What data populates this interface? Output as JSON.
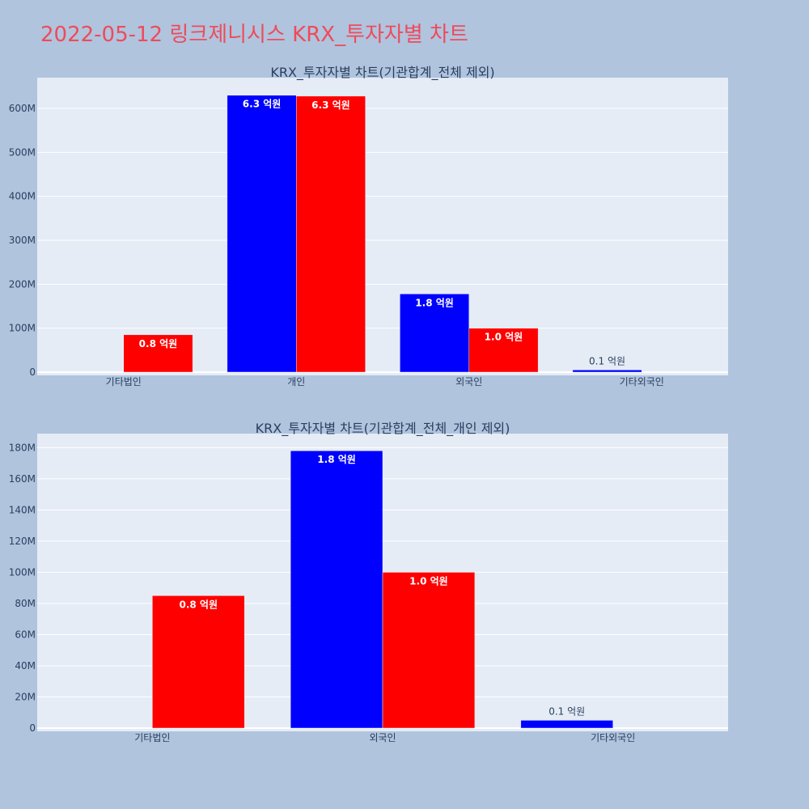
{
  "page_title": "2022-05-12 링크제니시스 KRX_투자자별 차트",
  "colors": {
    "page_bg": "#b0c4de",
    "plot_bg": "#e5ecf6",
    "grid": "#ffffff",
    "title": "#ef4b5b",
    "text": "#2a3f5f"
  },
  "chart_data": [
    {
      "type": "bar",
      "title": "KRX_투자자별 차트(기관합계_전체 제외)",
      "categories": [
        "기타법인",
        "개인",
        "외국인",
        "기타외국인"
      ],
      "ylim": [
        0,
        670000000
      ],
      "yticks": [
        0,
        100000000,
        200000000,
        300000000,
        400000000,
        500000000,
        600000000
      ],
      "ytick_labels": [
        "0",
        "100M",
        "200M",
        "300M",
        "400M",
        "500M",
        "600M"
      ],
      "grid": true,
      "series": [
        {
          "color": "#0000ff",
          "values": [
            0,
            630000000,
            178000000,
            5000000
          ],
          "labels": [
            "",
            "6.3 억원",
            "1.8 억원",
            "0.1 억원"
          ]
        },
        {
          "color": "#ff0000",
          "values": [
            85000000,
            628000000,
            100000000,
            0
          ],
          "labels": [
            "0.8 억원",
            "6.3 억원",
            "1.0 억원",
            ""
          ]
        }
      ]
    },
    {
      "type": "bar",
      "title": "KRX_투자자별 차트(기관합계_전체_개인 제외)",
      "categories": [
        "기타법인",
        "외국인",
        "기타외국인"
      ],
      "ylim": [
        0,
        189000000
      ],
      "yticks": [
        0,
        20000000,
        40000000,
        60000000,
        80000000,
        100000000,
        120000000,
        140000000,
        160000000,
        180000000
      ],
      "ytick_labels": [
        "0",
        "20M",
        "40M",
        "60M",
        "80M",
        "100M",
        "120M",
        "140M",
        "160M",
        "180M"
      ],
      "grid": true,
      "series": [
        {
          "color": "#0000ff",
          "values": [
            0,
            178000000,
            5000000
          ],
          "labels": [
            "",
            "1.8 억원",
            "0.1 억원"
          ]
        },
        {
          "color": "#ff0000",
          "values": [
            85000000,
            100000000,
            0
          ],
          "labels": [
            "0.8 억원",
            "1.0 억원",
            ""
          ]
        }
      ]
    }
  ]
}
